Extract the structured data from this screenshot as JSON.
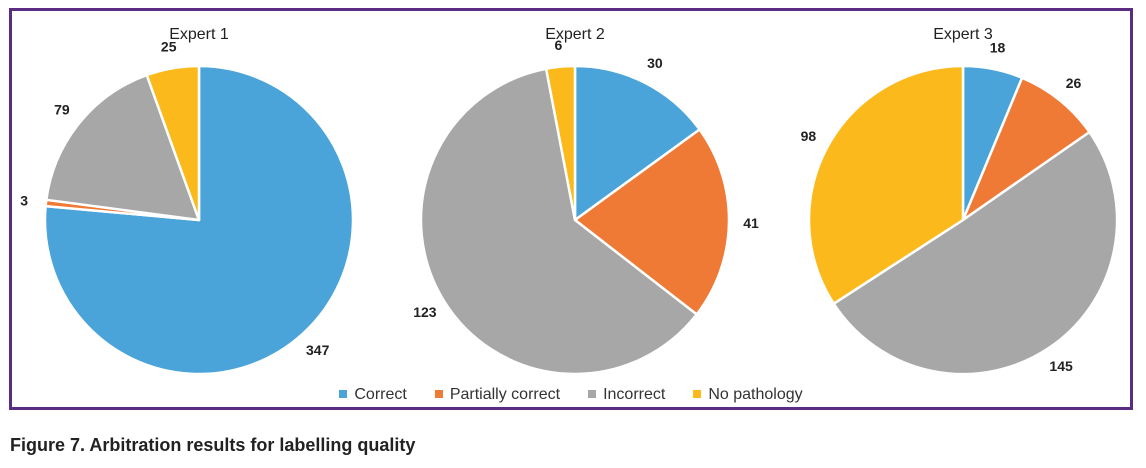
{
  "figure": {
    "caption": "Figure 7. Arbitration results for labelling quality"
  },
  "chart_data": {
    "type": "pie",
    "categories": [
      "Correct",
      "Partially correct",
      "Incorrect",
      "No pathology"
    ],
    "colors": [
      "#4aa3d9",
      "#ee7a35",
      "#a7a7a7",
      "#fbb91c"
    ],
    "legend_position": "bottom",
    "pies": [
      {
        "title": "Expert 1",
        "values": [
          347,
          3,
          79,
          25
        ]
      },
      {
        "title": "Expert 2",
        "values": [
          30,
          41,
          123,
          6
        ]
      },
      {
        "title": "Expert 3",
        "values": [
          18,
          26,
          145,
          98
        ]
      }
    ]
  }
}
